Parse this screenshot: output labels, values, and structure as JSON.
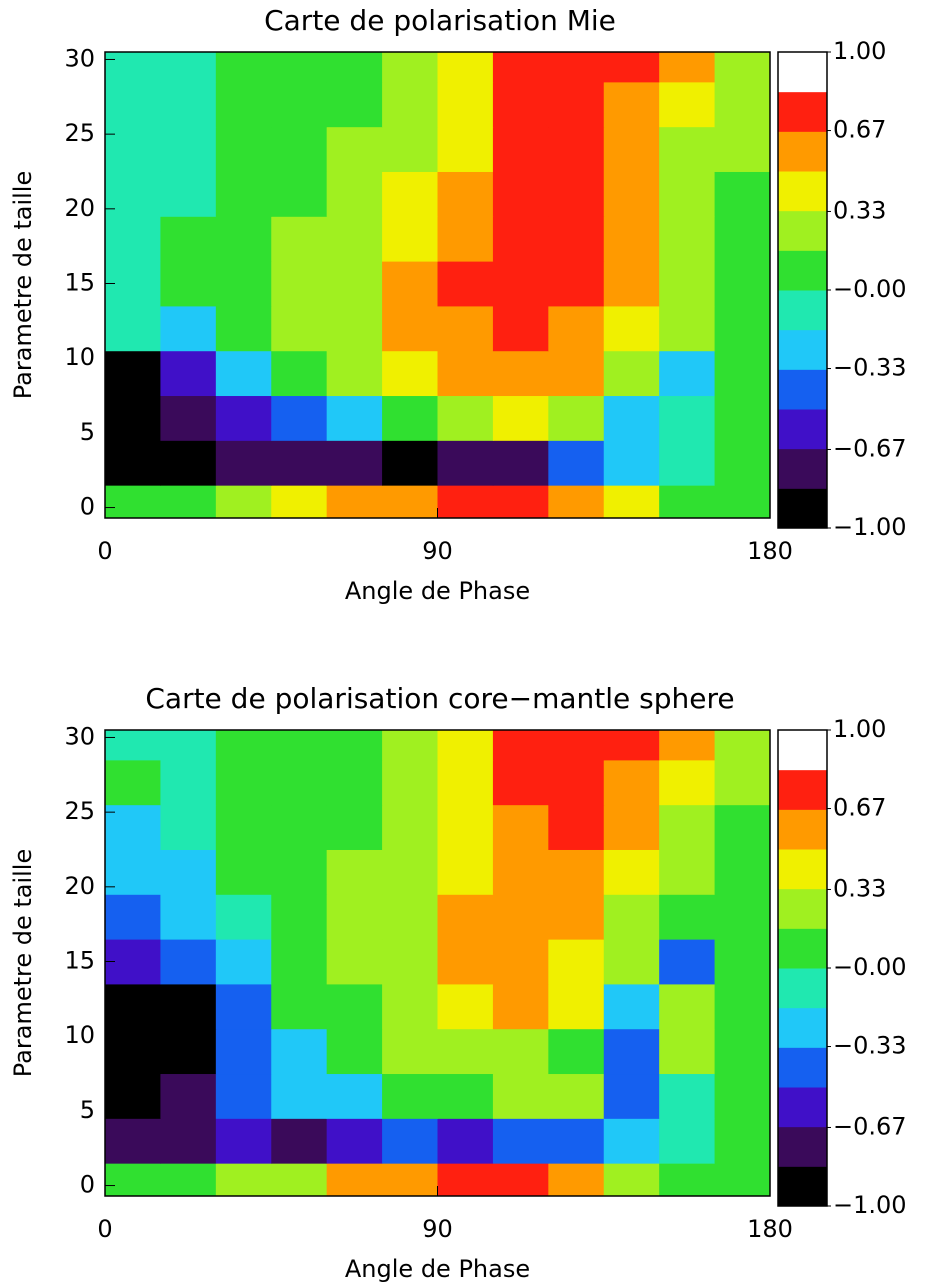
{
  "chart_data": [
    {
      "type": "contour",
      "title": "Carte de polarisation Mie",
      "x_label": "Angle de Phase",
      "y_label": "Parametre de taille",
      "xlim": [
        0,
        180
      ],
      "xticks": [
        0,
        90,
        180
      ],
      "ylim": [
        -0.7,
        30.5
      ],
      "yticks": [
        0,
        5,
        10,
        15,
        20,
        25,
        30
      ],
      "x": [
        7.5,
        22.5,
        37.5,
        52.5,
        67.5,
        82.5,
        97.5,
        112.5,
        127.5,
        142.5,
        157.5,
        172.5
      ],
      "y": [
        0,
        3,
        6,
        9,
        12,
        15,
        18,
        21,
        24,
        27,
        30
      ],
      "z": [
        [
          0.05,
          0.1,
          0.2,
          0.35,
          0.5,
          0.6,
          0.7,
          0.7,
          0.55,
          0.35,
          0.15,
          0.05
        ],
        [
          -0.9,
          -0.9,
          -0.8,
          -0.7,
          -0.8,
          -0.9,
          -0.8,
          -0.7,
          -0.5,
          -0.3,
          -0.1,
          0
        ],
        [
          -0.9,
          -0.8,
          -0.6,
          -0.4,
          -0.2,
          0,
          0.3,
          0.4,
          0.2,
          -0.2,
          -0.1,
          0
        ],
        [
          -0.9,
          -0.6,
          -0.3,
          0,
          0.2,
          0.4,
          0.5,
          0.6,
          0.6,
          0.3,
          -0.3,
          0
        ],
        [
          -0.1,
          -0.2,
          0,
          0.2,
          0.3,
          0.5,
          0.6,
          0.7,
          0.6,
          0.4,
          0.2,
          0
        ],
        [
          -0.1,
          0,
          0.1,
          0.2,
          0.3,
          0.5,
          0.7,
          0.75,
          0.7,
          0.5,
          0.3,
          0.1
        ],
        [
          -0.1,
          0,
          0.1,
          0.2,
          0.3,
          0.4,
          0.6,
          0.75,
          0.75,
          0.5,
          0.3,
          0.1
        ],
        [
          -0.1,
          -0.1,
          0,
          0.1,
          0.2,
          0.4,
          0.5,
          0.75,
          0.75,
          0.6,
          0.3,
          0.1
        ],
        [
          -0.1,
          -0.1,
          0,
          0.1,
          0.2,
          0.3,
          0.45,
          0.7,
          0.75,
          0.6,
          0.3,
          0.2
        ],
        [
          -0.1,
          -0.1,
          0,
          0.05,
          0.15,
          0.3,
          0.4,
          0.7,
          0.75,
          0.6,
          0.4,
          0.3
        ],
        [
          -0.1,
          -0.1,
          0,
          0.05,
          0.1,
          0.3,
          0.4,
          0.7,
          0.75,
          0.7,
          0.5,
          0.2
        ]
      ],
      "colorbar": {
        "lim": [
          -1,
          1
        ],
        "ticks": [
          {
            "value": 1,
            "label": "1.00"
          },
          {
            "value": 0.67,
            "label": "0.67"
          },
          {
            "value": 0.33,
            "label": "0.33"
          },
          {
            "value": 0,
            "label": "−0.00"
          },
          {
            "value": -0.33,
            "label": "−0.33"
          },
          {
            "value": -0.67,
            "label": "−0.67"
          },
          {
            "value": -1,
            "label": "−1.00"
          }
        ],
        "colors": [
          "#000000",
          "#3a0a5a",
          "#4010c8",
          "#1560f0",
          "#20c8f8",
          "#20e8b0",
          "#30e030",
          "#a0f020",
          "#f0f000",
          "#ff9a00",
          "#ff2010",
          "#ffffff"
        ]
      }
    },
    {
      "type": "contour",
      "title": "Carte de polarisation core−mantle sphere",
      "x_label": "Angle de Phase",
      "y_label": "Parametre de taille",
      "xlim": [
        0,
        180
      ],
      "xticks": [
        0,
        90,
        180
      ],
      "ylim": [
        -0.7,
        30.5
      ],
      "yticks": [
        0,
        5,
        10,
        15,
        20,
        25,
        30
      ],
      "x": [
        7.5,
        22.5,
        37.5,
        52.5,
        67.5,
        82.5,
        97.5,
        112.5,
        127.5,
        142.5,
        157.5,
        172.5
      ],
      "y": [
        0,
        3,
        6,
        9,
        12,
        15,
        18,
        21,
        24,
        27,
        30
      ],
      "z": [
        [
          0.05,
          0.1,
          0.2,
          0.3,
          0.5,
          0.6,
          0.7,
          0.7,
          0.5,
          0.3,
          0.15,
          0.05
        ],
        [
          -0.7,
          -0.7,
          -0.6,
          -0.7,
          -0.6,
          -0.5,
          -0.6,
          -0.5,
          -0.4,
          -0.3,
          -0.1,
          0
        ],
        [
          -0.9,
          -0.8,
          -0.5,
          -0.3,
          -0.2,
          0,
          0.1,
          0.3,
          0.2,
          -0.5,
          -0.1,
          0
        ],
        [
          -0.9,
          -0.9,
          -0.5,
          -0.3,
          0,
          0.2,
          0.3,
          0.2,
          0.1,
          -0.4,
          0.3,
          0
        ],
        [
          -0.9,
          -0.9,
          -0.4,
          0,
          0.1,
          0.3,
          0.4,
          0.5,
          0.4,
          -0.3,
          0.3,
          0
        ],
        [
          -0.6,
          -0.5,
          -0.2,
          0,
          0.2,
          0.3,
          0.5,
          0.5,
          0.4,
          0.2,
          -0.4,
          0
        ],
        [
          -0.5,
          -0.3,
          -0.1,
          0.1,
          0.2,
          0.3,
          0.5,
          0.6,
          0.5,
          0.3,
          0.1,
          0
        ],
        [
          -0.3,
          -0.2,
          0,
          0.1,
          0.2,
          0.3,
          0.45,
          0.6,
          0.55,
          0.4,
          0.2,
          0.1
        ],
        [
          -0.2,
          -0.1,
          0,
          0.1,
          0.15,
          0.3,
          0.45,
          0.6,
          0.7,
          0.5,
          0.3,
          0.1
        ],
        [
          0,
          -0.1,
          0,
          0.05,
          0.15,
          0.3,
          0.4,
          0.7,
          0.75,
          0.6,
          0.4,
          0.2
        ],
        [
          -0.1,
          -0.1,
          0,
          0.05,
          0.15,
          0.3,
          0.4,
          0.7,
          0.75,
          0.7,
          0.5,
          0.2
        ]
      ],
      "colorbar": {
        "lim": [
          -1,
          1
        ],
        "ticks": [
          {
            "value": 1,
            "label": "1.00"
          },
          {
            "value": 0.67,
            "label": "0.67"
          },
          {
            "value": 0.33,
            "label": "0.33"
          },
          {
            "value": 0,
            "label": "−0.00"
          },
          {
            "value": -0.33,
            "label": "−0.33"
          },
          {
            "value": -0.67,
            "label": "−0.67"
          },
          {
            "value": -1,
            "label": "−1.00"
          }
        ],
        "colors": [
          "#000000",
          "#3a0a5a",
          "#4010c8",
          "#1560f0",
          "#20c8f8",
          "#20e8b0",
          "#30e030",
          "#a0f020",
          "#f0f000",
          "#ff9a00",
          "#ff2010",
          "#ffffff"
        ]
      }
    }
  ]
}
